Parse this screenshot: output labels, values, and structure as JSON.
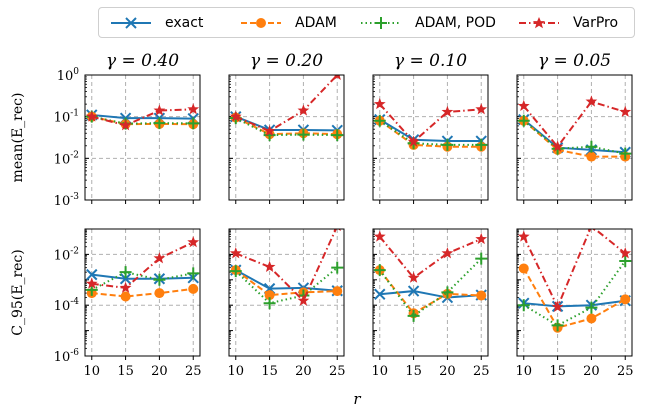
{
  "chart_data": {
    "type": "line",
    "legend": {
      "placement": "top-center",
      "entries": [
        {
          "label": "exact",
          "color": "#1f77b4",
          "marker": "x",
          "dash": "solid"
        },
        {
          "label": "ADAM",
          "color": "#ff7f0e",
          "marker": "o",
          "dash": "dashed"
        },
        {
          "label": "ADAM, POD",
          "color": "#2ca02c",
          "marker": "+",
          "dash": "dotted"
        },
        {
          "label": "VarPro",
          "color": "#d62728",
          "marker": "*",
          "dash": "dashdot"
        }
      ]
    },
    "x": [
      10,
      15,
      20,
      25
    ],
    "xlabel": "r",
    "xticks": [
      "10",
      "15",
      "20",
      "25"
    ],
    "columns": [
      "γ = 0.40",
      "γ = 0.20",
      "γ = 0.10",
      "γ = 0.05"
    ],
    "rows": [
      {
        "ylabel": "mean(E_rec)",
        "ylim_log10": [
          -3,
          0
        ],
        "yticks": [
          {
            "exp": 0,
            "label": "10^0"
          },
          {
            "exp": -1,
            "label": "10^-1"
          },
          {
            "exp": -2,
            "label": "10^-2"
          },
          {
            "exp": -3,
            "label": "10^-3"
          }
        ],
        "panels": [
          {
            "series": [
              {
                "name": "exact",
                "values": [
                  0.11,
                  0.092,
                  0.092,
                  0.09
                ]
              },
              {
                "name": "ADAM",
                "values": [
                  0.1,
                  0.066,
                  0.067,
                  0.066
                ]
              },
              {
                "name": "ADAM, POD",
                "values": [
                  0.1,
                  0.068,
                  0.07,
                  0.069
                ]
              },
              {
                "name": "VarPro",
                "values": [
                  0.1,
                  0.062,
                  0.14,
                  0.15
                ]
              }
            ]
          },
          {
            "series": [
              {
                "name": "exact",
                "values": [
                  0.1,
                  0.048,
                  0.048,
                  0.047
                ]
              },
              {
                "name": "ADAM",
                "values": [
                  0.095,
                  0.038,
                  0.04,
                  0.038
                ]
              },
              {
                "name": "ADAM, POD",
                "values": [
                  0.092,
                  0.036,
                  0.037,
                  0.036
                ]
              },
              {
                "name": "VarPro",
                "values": [
                  0.1,
                  0.045,
                  0.14,
                  1.0
                ]
              }
            ]
          },
          {
            "series": [
              {
                "name": "exact",
                "values": [
                  0.085,
                  0.028,
                  0.026,
                  0.026
                ]
              },
              {
                "name": "ADAM",
                "values": [
                  0.08,
                  0.021,
                  0.019,
                  0.019
                ]
              },
              {
                "name": "ADAM, POD",
                "values": [
                  0.08,
                  0.023,
                  0.021,
                  0.021
                ]
              },
              {
                "name": "VarPro",
                "values": [
                  0.2,
                  0.025,
                  0.13,
                  0.15
                ]
              }
            ]
          },
          {
            "series": [
              {
                "name": "exact",
                "values": [
                  0.085,
                  0.018,
                  0.016,
                  0.014
                ]
              },
              {
                "name": "ADAM",
                "values": [
                  0.08,
                  0.016,
                  0.011,
                  0.011
                ]
              },
              {
                "name": "ADAM, POD",
                "values": [
                  0.08,
                  0.017,
                  0.019,
                  0.013
                ]
              },
              {
                "name": "VarPro",
                "values": [
                  0.18,
                  0.019,
                  0.23,
                  0.13
                ]
              }
            ]
          }
        ]
      },
      {
        "ylabel": "C_95(E_rec)",
        "ylim_log10": [
          -6,
          -1
        ],
        "yticks": [
          {
            "exp": -2,
            "label": "10^-2"
          },
          {
            "exp": -4,
            "label": "10^-4"
          },
          {
            "exp": -6,
            "label": "10^-6"
          }
        ],
        "panels": [
          {
            "series": [
              {
                "name": "exact",
                "values": [
                  0.0016,
                  0.0011,
                  0.0011,
                  0.0012
                ]
              },
              {
                "name": "ADAM",
                "values": [
                  0.0003,
                  0.00022,
                  0.0003,
                  0.00044
                ]
              },
              {
                "name": "ADAM, POD",
                "values": [
                  0.0004,
                  0.002,
                  0.001,
                  0.0018
                ]
              },
              {
                "name": "VarPro",
                "values": [
                  0.0007,
                  0.00048,
                  0.007,
                  0.03
                ]
              }
            ]
          },
          {
            "series": [
              {
                "name": "exact",
                "values": [
                  0.0024,
                  0.00045,
                  0.00048,
                  0.00037
                ]
              },
              {
                "name": "ADAM",
                "values": [
                  0.0024,
                  0.00025,
                  0.00032,
                  0.00036
                ]
              },
              {
                "name": "ADAM, POD",
                "values": [
                  0.0022,
                  0.00012,
                  0.00024,
                  0.003
                ]
              },
              {
                "name": "VarPro",
                "values": [
                  0.011,
                  0.0032,
                  0.00015,
                  0.13
                ]
              }
            ]
          },
          {
            "series": [
              {
                "name": "exact",
                "values": [
                  0.00027,
                  0.00036,
                  0.0002,
                  0.00025
                ]
              },
              {
                "name": "ADAM",
                "values": [
                  0.0024,
                  4.8e-05,
                  0.00028,
                  0.00024
                ]
              },
              {
                "name": "ADAM, POD",
                "values": [
                  0.0024,
                  3.8e-05,
                  0.00032,
                  0.0068
                ]
              },
              {
                "name": "VarPro",
                "values": [
                  0.05,
                  0.0012,
                  0.011,
                  0.04
                ]
              }
            ]
          },
          {
            "series": [
              {
                "name": "exact",
                "values": [
                  0.00012,
                  9e-05,
                  0.0001,
                  0.00015
                ]
              },
              {
                "name": "ADAM",
                "values": [
                  0.0028,
                  1.3e-05,
                  3e-05,
                  0.00017
                ]
              },
              {
                "name": "ADAM, POD",
                "values": [
                  0.0001,
                  1.6e-05,
                  8e-05,
                  0.0055
                ]
              },
              {
                "name": "VarPro",
                "values": [
                  0.05,
                  8.5e-05,
                  0.13,
                  0.011
                ]
              }
            ]
          }
        ]
      }
    ]
  }
}
